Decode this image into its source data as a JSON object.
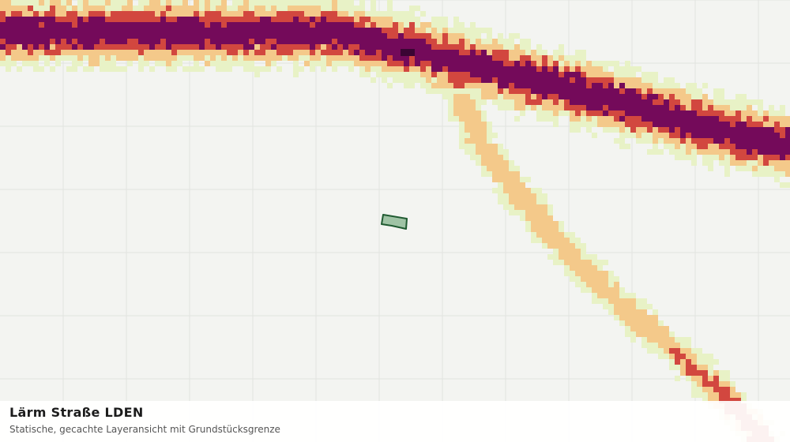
{
  "map": {
    "layer": "Lärm Straße LDEN",
    "background": "#f3f4f1",
    "grid_color": "#e1e3df",
    "noise_classes": [
      {
        "name": "class-1",
        "color": "#e8f2c6"
      },
      {
        "name": "class-2",
        "color": "#f4c98a"
      },
      {
        "name": "class-3",
        "color": "#d2473f"
      },
      {
        "name": "class-4",
        "color": "#740a5a"
      },
      {
        "name": "class-5",
        "color": "#3a0533"
      }
    ],
    "parcel": {
      "fill": "#9fc3a5",
      "stroke": "#1f5a31"
    }
  },
  "caption": {
    "title": "Lärm Straße LDEN",
    "subtitle": "Statische, gecachte Layeransicht mit Grundstücksgrenze"
  }
}
